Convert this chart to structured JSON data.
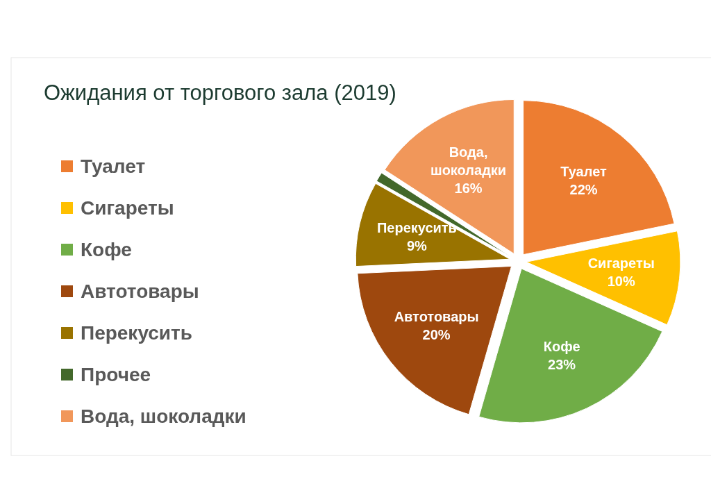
{
  "chart_data": {
    "type": "pie",
    "title": "Ожидания от торгового зала (2019)",
    "categories": [
      "Туалет",
      "Сигареты",
      "Кофе",
      "Автотовары",
      "Перекусить",
      "Прочее",
      "Вода, шоколадки"
    ],
    "values": [
      22,
      10,
      23,
      20,
      9,
      1,
      16
    ],
    "colors": [
      "#ed7d31",
      "#ffc000",
      "#70ad47",
      "#9e480e",
      "#997300",
      "#43682b",
      "#f1975a"
    ],
    "value_labels": [
      "22%",
      "10%",
      "23%",
      "20%",
      "9%",
      null,
      "16%"
    ],
    "legend": "left"
  }
}
